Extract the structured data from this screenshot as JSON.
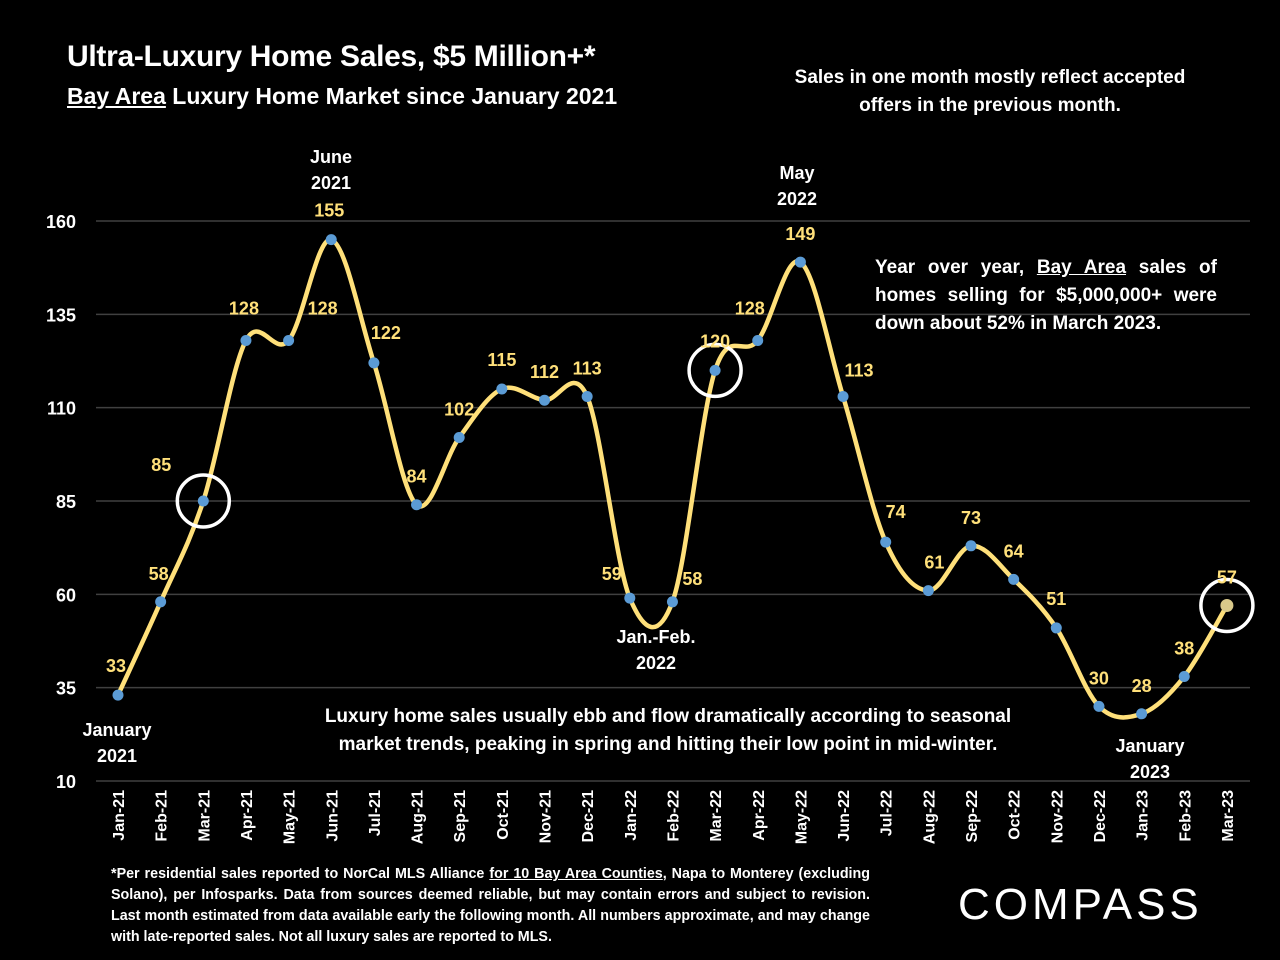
{
  "header": {
    "title": "Ultra-Luxury Home Sales, $5 Million+*",
    "subtitle_underlined": "Bay Area",
    "subtitle_rest": " Luxury Home Market since January 2021"
  },
  "notes": {
    "top": "Sales in one month mostly reflect accepted offers in the previous month.",
    "yoy_pre": "Year over year, ",
    "yoy_underlined": "Bay Area",
    "yoy_post": " sales of homes selling for $5,000,000+ were down about 52% in March 2023.",
    "seasonal": "Luxury home sales usually ebb and flow dramatically according to seasonal market trends, peaking in spring and hitting their low point in mid-winter."
  },
  "annotations": {
    "jan2021": "January 2021",
    "jun2021": "June 2021",
    "may2022": "May 2022",
    "janfeb2022": "Jan.-Feb. 2022",
    "jan2023": "January 2023"
  },
  "footnote": {
    "pre": "*Per residential sales reported to NorCal MLS Alliance ",
    "underlined": "for 10 Bay Area Counties",
    "post": ", Napa to Monterey (excluding Solano), per Infosparks. Data from sources deemed reliable, but may contain errors and subject to revision. Last month estimated from data available early the following month. All numbers approximate, and may change with late-reported sales. Not all luxury sales are reported to MLS."
  },
  "logo": "COMPASS",
  "colors": {
    "line": "#FFE07A",
    "marker": "#5B9BD5",
    "label": "#FFE07A",
    "grid": "#404040",
    "circle": "#FFFFFF"
  },
  "chart_data": {
    "type": "line",
    "title": "Ultra-Luxury Home Sales, $5 Million+*",
    "categories": [
      "Jan-21",
      "Feb-21",
      "Mar-21",
      "Apr-21",
      "May-21",
      "Jun-21",
      "Jul-21",
      "Aug-21",
      "Sep-21",
      "Oct-21",
      "Nov-21",
      "Dec-21",
      "Jan-22",
      "Feb-22",
      "Mar-22",
      "Apr-22",
      "May-22",
      "Jun-22",
      "Jul-22",
      "Aug-22",
      "Sep-22",
      "Oct-22",
      "Nov-22",
      "Dec-22",
      "Jan-23",
      "Feb-23",
      "Mar-23"
    ],
    "values": [
      33,
      58,
      85,
      128,
      128,
      155,
      122,
      84,
      102,
      115,
      112,
      113,
      59,
      58,
      120,
      128,
      149,
      113,
      74,
      61,
      73,
      64,
      51,
      30,
      28,
      38,
      57
    ],
    "ylim": [
      10,
      160
    ],
    "yticks": [
      10,
      35,
      60,
      85,
      110,
      135,
      160
    ],
    "circled": [
      "Mar-21",
      "Mar-22",
      "Mar-23"
    ],
    "grid": true
  }
}
